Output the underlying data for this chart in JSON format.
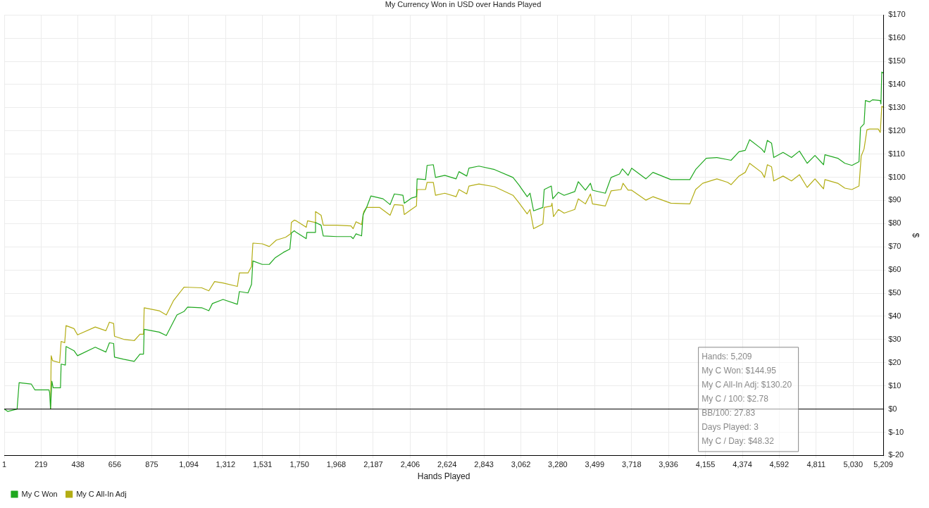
{
  "chart_data": {
    "type": "line",
    "title": "My Currency Won in USD over Hands Played",
    "xlabel": "Hands Played",
    "ylabel": "$",
    "xlim": [
      1,
      5209
    ],
    "xticks": [
      1,
      219,
      438,
      656,
      875,
      {
        "value": 1094,
        "label": "1,094"
      },
      {
        "value": 1312,
        "label": "1,312"
      },
      {
        "value": 1531,
        "label": "1,531"
      },
      {
        "value": 1750,
        "label": "1,750"
      },
      {
        "value": 1968,
        "label": "1,968"
      },
      {
        "value": 2187,
        "label": "2,187"
      },
      {
        "value": 2406,
        "label": "2,406"
      },
      {
        "value": 2624,
        "label": "2,624"
      },
      {
        "value": 2843,
        "label": "2,843"
      },
      {
        "value": 3062,
        "label": "3,062"
      },
      {
        "value": 3280,
        "label": "3,280"
      },
      {
        "value": 3499,
        "label": "3,499"
      },
      {
        "value": 3718,
        "label": "3,718"
      },
      {
        "value": 3936,
        "label": "3,936"
      },
      {
        "value": 4155,
        "label": "4,155"
      },
      {
        "value": 4374,
        "label": "4,374"
      },
      {
        "value": 4592,
        "label": "4,592"
      },
      {
        "value": 4811,
        "label": "4,811"
      },
      {
        "value": 5030,
        "label": "5,030"
      },
      {
        "value": 5209,
        "label": "5,209"
      }
    ],
    "ylim": [
      -20,
      170
    ],
    "yticks": [
      {
        "value": -20,
        "label": "$-20"
      },
      {
        "value": -10,
        "label": "$-10"
      },
      {
        "value": 0,
        "label": "$0"
      },
      {
        "value": 10,
        "label": "$10"
      },
      {
        "value": 20,
        "label": "$20"
      },
      {
        "value": 30,
        "label": "$30"
      },
      {
        "value": 40,
        "label": "$40"
      },
      {
        "value": 50,
        "label": "$50"
      },
      {
        "value": 60,
        "label": "$60"
      },
      {
        "value": 70,
        "label": "$70"
      },
      {
        "value": 80,
        "label": "$80"
      },
      {
        "value": 90,
        "label": "$90"
      },
      {
        "value": 100,
        "label": "$100"
      },
      {
        "value": 110,
        "label": "$110"
      },
      {
        "value": 120,
        "label": "$120"
      },
      {
        "value": 130,
        "label": "$130"
      },
      {
        "value": 140,
        "label": "$140"
      },
      {
        "value": 150,
        "label": "$150"
      },
      {
        "value": 160,
        "label": "$160"
      },
      {
        "value": 170,
        "label": "$170"
      }
    ],
    "grid": true,
    "legend": "bottom left",
    "marker": "none",
    "ref_lines": [
      {
        "axis": "y",
        "value": 0,
        "color": "#000000"
      }
    ],
    "annotations": [
      "Hands: 5,209",
      "My C Won: $144.95",
      "My C All-In Adj: $130.20",
      "My C / 100: $2.78",
      "BB/100: 27.83",
      "Days Played: 3",
      "My C / Day: $48.32"
    ],
    "series": [
      {
        "name": "My C Won",
        "color": "#1fa81f",
        "x": [
          1,
          22,
          77,
          89,
          161,
          182,
          266,
          270,
          275,
          283,
          291,
          334,
          338,
          363,
          367,
          414,
          435,
          540,
          603,
          624,
          649,
          654,
          708,
          771,
          805,
          826,
          830,
          919,
          961,
          1024,
          1066,
          1087,
          1171,
          1213,
          1234,
          1297,
          1382,
          1394,
          1445,
          1466,
          1474,
          1529,
          1571,
          1605,
          1655,
          1693,
          1702,
          1719,
          1731,
          1790,
          1794,
          1841,
          1845,
          1878,
          1891,
          1971,
          2055,
          2068,
          2085,
          2118,
          2127,
          2148,
          2173,
          2245,
          2287,
          2312,
          2363,
          2371,
          2413,
          2443,
          2447,
          2497,
          2506,
          2543,
          2556,
          2611,
          2678,
          2695,
          2741,
          2754,
          2813,
          2906,
          3015,
          3049,
          3099,
          3116,
          3137,
          3192,
          3200,
          3242,
          3251,
          3284,
          3318,
          3381,
          3402,
          3444,
          3474,
          3486,
          3562,
          3596,
          3646,
          3663,
          3697,
          3718,
          3802,
          3844,
          3950,
          4063,
          4097,
          4160,
          4223,
          4286,
          4307,
          4354,
          4391,
          4417,
          4488,
          4505,
          4522,
          4547,
          4560,
          4615,
          4665,
          4712,
          4758,
          4804,
          4855,
          4863,
          4939,
          4981,
          5023,
          5065,
          5074,
          5095,
          5103,
          5128,
          5145,
          5191,
          5195,
          5200,
          5209
        ],
        "values": [
          0,
          -1,
          0,
          11.4,
          10.8,
          8.3,
          8.3,
          7,
          0,
          12,
          9.2,
          9.2,
          19.4,
          19,
          27,
          25.2,
          23,
          26.7,
          24.6,
          28.6,
          28.3,
          22.4,
          21.5,
          20.6,
          23.7,
          23.7,
          34.4,
          33.2,
          31.7,
          40.6,
          42.1,
          44,
          43.7,
          42.4,
          45.5,
          47.3,
          45.2,
          50.7,
          50.1,
          53.8,
          63.9,
          62.4,
          62.4,
          65.2,
          67.6,
          69,
          75.9,
          76.9,
          76.2,
          73.5,
          76.2,
          76.2,
          80.5,
          79.3,
          74.7,
          74.4,
          74.4,
          73.5,
          75.6,
          74.7,
          83.9,
          87,
          91.9,
          90.7,
          88.2,
          92.8,
          92.2,
          88.8,
          91,
          91.6,
          99.3,
          99,
          105.1,
          105.4,
          99.9,
          100.8,
          99.3,
          102.4,
          100.5,
          103.9,
          104.8,
          103.3,
          99.9,
          96.8,
          91.6,
          93.1,
          85.5,
          87,
          94.7,
          96.2,
          90.7,
          93.5,
          92.2,
          93.8,
          98.1,
          94.4,
          97.4,
          94.4,
          93.1,
          99.9,
          101.4,
          103.6,
          100.8,
          103.9,
          99.3,
          102.1,
          99,
          99,
          103.3,
          108.2,
          108.5,
          107.6,
          107.3,
          111,
          111.6,
          116.2,
          112.2,
          110.7,
          115.9,
          114.7,
          108.5,
          110.7,
          108.5,
          111.3,
          106,
          109.4,
          105.4,
          109.7,
          108.2,
          106,
          105.1,
          106.7,
          121.4,
          123,
          133.1,
          132.5,
          133.4,
          133.1,
          131.6,
          145.4,
          145
        ]
      },
      {
        "name": "My C All-In Adj",
        "color": "#b3ad14",
        "x": [
          275,
          279,
          287,
          329,
          338,
          359,
          367,
          414,
          435,
          540,
          603,
          624,
          649,
          654,
          708,
          771,
          805,
          826,
          830,
          919,
          961,
          1003,
          1066,
          1171,
          1213,
          1247,
          1297,
          1382,
          1394,
          1445,
          1466,
          1474,
          1529,
          1571,
          1613,
          1668,
          1698,
          1702,
          1719,
          1731,
          1790,
          1798,
          1841,
          1845,
          1878,
          1891,
          1971,
          2055,
          2068,
          2085,
          2118,
          2131,
          2148,
          2224,
          2287,
          2312,
          2363,
          2371,
          2413,
          2443,
          2447,
          2497,
          2506,
          2543,
          2556,
          2611,
          2678,
          2695,
          2741,
          2754,
          2813,
          2906,
          3015,
          3049,
          3099,
          3116,
          3137,
          3192,
          3200,
          3242,
          3246,
          3255,
          3284,
          3318,
          3381,
          3402,
          3444,
          3474,
          3486,
          3562,
          3596,
          3655,
          3667,
          3697,
          3718,
          3802,
          3844,
          3950,
          4063,
          4097,
          4139,
          4223,
          4286,
          4307,
          4354,
          4391,
          4417,
          4488,
          4505,
          4522,
          4547,
          4560,
          4615,
          4665,
          4712,
          4758,
          4804,
          4855,
          4863,
          4939,
          4981,
          5023,
          5065,
          5078,
          5095,
          5112,
          5128,
          5179,
          5191,
          5200,
          5209
        ],
        "values": [
          0,
          23,
          20.9,
          20,
          29.2,
          28.6,
          36,
          34.7,
          32,
          35.4,
          33.8,
          37.5,
          36.9,
          31.4,
          30.1,
          29.5,
          32.3,
          32.3,
          43.7,
          42.4,
          40.6,
          46.7,
          52.6,
          52.3,
          51,
          55,
          54.4,
          52.9,
          58.7,
          58.7,
          61.5,
          71.6,
          71.3,
          70.1,
          72.9,
          74.1,
          75.6,
          80.5,
          81.5,
          81.2,
          78.4,
          81.2,
          80.5,
          85.2,
          83.6,
          79.3,
          79.3,
          79,
          77.8,
          80.8,
          79.6,
          85.2,
          87,
          87,
          83.6,
          88.2,
          87.9,
          83.9,
          86.1,
          87.6,
          94.7,
          94.7,
          97.8,
          97.8,
          92.2,
          93.1,
          91.6,
          94.7,
          92.8,
          96.2,
          97.1,
          95.9,
          92.2,
          89.1,
          84.2,
          86.1,
          77.8,
          79.9,
          87,
          87.6,
          88.8,
          83,
          86.1,
          84.5,
          86.1,
          90.7,
          88.5,
          92.8,
          88.5,
          87.6,
          94.1,
          94.7,
          97.4,
          94.4,
          94.4,
          90.1,
          91.6,
          88.8,
          88.5,
          94.7,
          97.4,
          99.3,
          97.8,
          96.8,
          100.5,
          102.1,
          106,
          102.1,
          99.9,
          105.4,
          104.5,
          98.4,
          100.5,
          98.4,
          101.1,
          95.6,
          99.3,
          95,
          99,
          97.4,
          95.3,
          94.7,
          96.2,
          109.1,
          112.2,
          120.5,
          120.8,
          120.8,
          119.3,
          130.6,
          130.2
        ]
      }
    ]
  }
}
